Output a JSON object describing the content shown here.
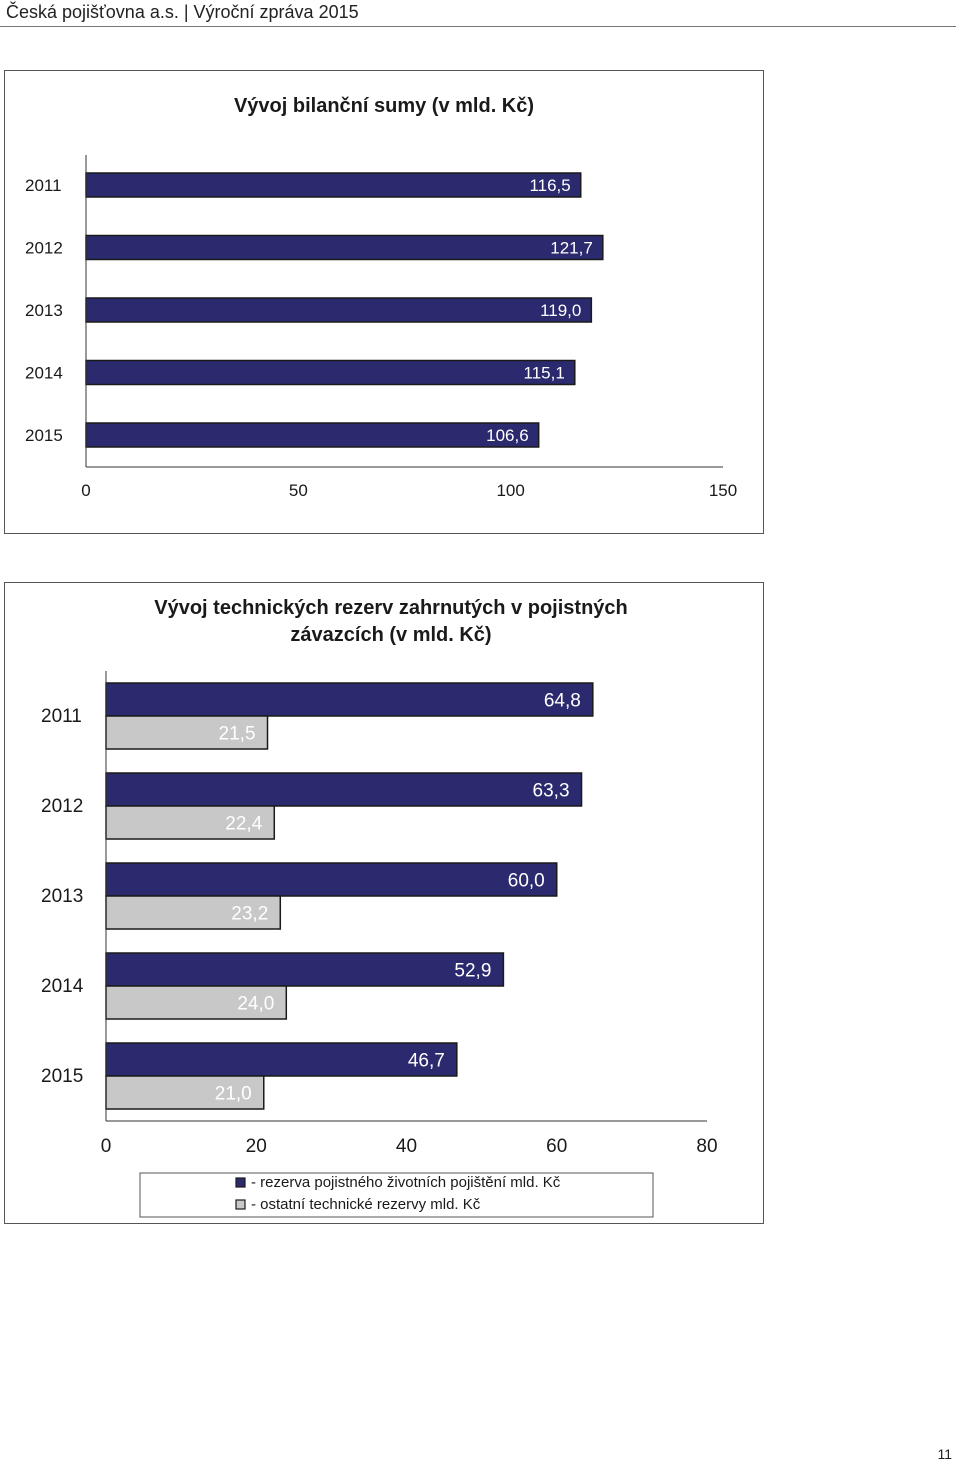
{
  "header": {
    "text": "Česká pojišťovna a.s. | Výroční zpráva 2015"
  },
  "page_number": "11",
  "colors": {
    "dark_bar": "#2b2a6e",
    "light_bar": "#c8c8c8",
    "bar_stroke": "#1a1a1a"
  },
  "chart_data": [
    {
      "type": "bar",
      "orientation": "horizontal",
      "title": "Vývoj bilanční sumy (v mld. Kč)",
      "categories": [
        "2011",
        "2012",
        "2013",
        "2014",
        "2015"
      ],
      "series": [
        {
          "values": [
            116.5,
            121.7,
            119.0,
            115.1,
            106.6
          ],
          "labels": [
            "116,5",
            "121,7",
            "119,0",
            "115,1",
            "106,6"
          ],
          "color": "#2b2a6e"
        }
      ],
      "xlim": [
        0,
        150
      ],
      "xticks": [
        0,
        50,
        100,
        150
      ],
      "xtick_labels": [
        "0",
        "50",
        "100",
        "150"
      ],
      "grid": false
    },
    {
      "type": "bar",
      "orientation": "horizontal",
      "title": "Vývoj technických rezerv zahrnutých v pojistných závazcích (v mld. Kč)",
      "title_lines": [
        "Vývoj technických rezerv zahrnutých v pojistných",
        "závazcích (v mld. Kč)"
      ],
      "categories": [
        "2011",
        "2012",
        "2013",
        "2014",
        "2015"
      ],
      "series": [
        {
          "name": "- rezerva pojistného životních pojištění mld. Kč",
          "values": [
            64.8,
            63.3,
            60.0,
            52.9,
            46.7
          ],
          "labels": [
            "64,8",
            "63,3",
            "60,0",
            "52,9",
            "46,7"
          ],
          "color": "#2b2a6e"
        },
        {
          "name": "- ostatní technické rezervy mld. Kč",
          "values": [
            21.5,
            22.4,
            23.2,
            24.0,
            21.0
          ],
          "labels": [
            "21,5",
            "22,4",
            "23,2",
            "24,0",
            "21,0"
          ],
          "color": "#c8c8c8"
        }
      ],
      "xlim": [
        0,
        80
      ],
      "xticks": [
        0,
        20,
        40,
        60,
        80
      ],
      "xtick_labels": [
        "0",
        "20",
        "40",
        "60",
        "80"
      ],
      "legend": "bottom",
      "grid": false
    }
  ]
}
